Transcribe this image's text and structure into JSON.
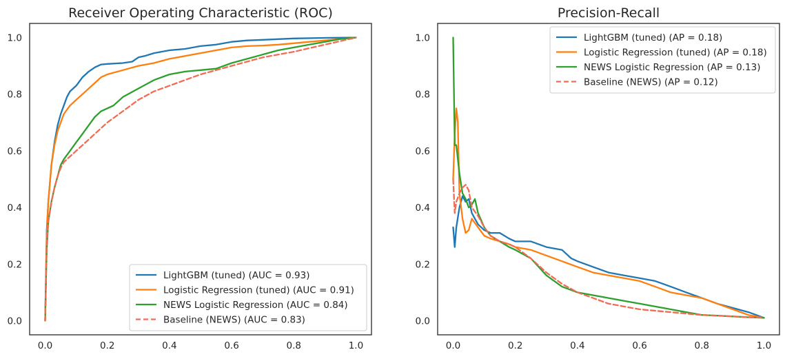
{
  "chart_data": [
    {
      "type": "line",
      "title": "Receiver Operating Characteristic (ROC)",
      "xlabel": "",
      "ylabel": "",
      "xlim": [
        -0.05,
        1.05
      ],
      "ylim": [
        -0.05,
        1.05
      ],
      "xticks": [
        "0.0",
        "0.2",
        "0.4",
        "0.6",
        "0.8",
        "1.0"
      ],
      "yticks": [
        "0.0",
        "0.2",
        "0.4",
        "0.6",
        "0.8",
        "1.0"
      ],
      "grid": false,
      "legend_position": "lower-right",
      "series": [
        {
          "name": "LightGBM (tuned) (AUC = 0.93)",
          "color": "#1f77b4",
          "dash": false,
          "x": [
            0,
            0.005,
            0.01,
            0.02,
            0.03,
            0.04,
            0.05,
            0.06,
            0.07,
            0.08,
            0.1,
            0.12,
            0.14,
            0.16,
            0.18,
            0.2,
            0.25,
            0.28,
            0.3,
            0.32,
            0.35,
            0.4,
            0.45,
            0.5,
            0.55,
            0.6,
            0.65,
            0.7,
            0.8,
            0.9,
            1.0
          ],
          "y": [
            0,
            0.32,
            0.42,
            0.55,
            0.63,
            0.69,
            0.73,
            0.76,
            0.79,
            0.81,
            0.83,
            0.86,
            0.88,
            0.895,
            0.905,
            0.907,
            0.91,
            0.915,
            0.93,
            0.935,
            0.945,
            0.955,
            0.96,
            0.97,
            0.975,
            0.985,
            0.99,
            0.992,
            0.997,
            0.999,
            1.0
          ]
        },
        {
          "name": "Logistic Regression (tuned) (AUC = 0.91)",
          "color": "#ff7f0e",
          "dash": false,
          "x": [
            0,
            0.005,
            0.01,
            0.02,
            0.03,
            0.04,
            0.05,
            0.06,
            0.08,
            0.1,
            0.12,
            0.15,
            0.18,
            0.2,
            0.25,
            0.3,
            0.35,
            0.4,
            0.45,
            0.5,
            0.55,
            0.6,
            0.65,
            0.7,
            0.75,
            0.8,
            0.85,
            0.9,
            0.95,
            1.0
          ],
          "y": [
            0,
            0.3,
            0.42,
            0.55,
            0.62,
            0.67,
            0.7,
            0.73,
            0.76,
            0.78,
            0.8,
            0.83,
            0.86,
            0.87,
            0.885,
            0.9,
            0.91,
            0.925,
            0.935,
            0.945,
            0.955,
            0.965,
            0.97,
            0.972,
            0.975,
            0.98,
            0.985,
            0.99,
            0.995,
            1.0
          ]
        },
        {
          "name": "NEWS Logistic Regression (AUC = 0.84)",
          "color": "#2ca02c",
          "dash": false,
          "x": [
            0,
            0.005,
            0.01,
            0.02,
            0.03,
            0.04,
            0.05,
            0.06,
            0.08,
            0.1,
            0.12,
            0.14,
            0.16,
            0.18,
            0.2,
            0.22,
            0.25,
            0.3,
            0.35,
            0.4,
            0.45,
            0.5,
            0.55,
            0.6,
            0.65,
            0.7,
            0.75,
            0.8,
            0.85,
            0.9,
            0.95,
            1.0
          ],
          "y": [
            0,
            0.25,
            0.35,
            0.42,
            0.47,
            0.51,
            0.55,
            0.57,
            0.6,
            0.63,
            0.66,
            0.69,
            0.72,
            0.74,
            0.75,
            0.76,
            0.79,
            0.82,
            0.85,
            0.87,
            0.88,
            0.885,
            0.89,
            0.91,
            0.925,
            0.94,
            0.955,
            0.965,
            0.975,
            0.985,
            0.995,
            1.0
          ]
        },
        {
          "name": "Baseline (NEWS) (AUC = 0.83)",
          "color": "#f26b52",
          "dash": true,
          "x": [
            0,
            0.005,
            0.01,
            0.02,
            0.03,
            0.04,
            0.05,
            0.06,
            0.08,
            0.1,
            0.12,
            0.15,
            0.2,
            0.25,
            0.3,
            0.35,
            0.4,
            0.5,
            0.6,
            0.7,
            0.8,
            0.9,
            1.0
          ],
          "y": [
            0,
            0.27,
            0.35,
            0.42,
            0.47,
            0.51,
            0.54,
            0.56,
            0.58,
            0.6,
            0.62,
            0.65,
            0.7,
            0.74,
            0.78,
            0.81,
            0.83,
            0.87,
            0.9,
            0.93,
            0.95,
            0.975,
            1.0
          ]
        }
      ]
    },
    {
      "type": "line",
      "title": "Precision-Recall",
      "xlabel": "",
      "ylabel": "",
      "xlim": [
        -0.05,
        1.05
      ],
      "ylim": [
        -0.05,
        1.05
      ],
      "xticks": [
        "0.0",
        "0.2",
        "0.4",
        "0.6",
        "0.8",
        "1.0"
      ],
      "yticks": [
        "0.0",
        "0.2",
        "0.4",
        "0.6",
        "0.8",
        "1.0"
      ],
      "grid": false,
      "legend_position": "upper-right",
      "series": [
        {
          "name": "LightGBM (tuned) (AP = 0.18)",
          "color": "#1f77b4",
          "dash": false,
          "x": [
            0,
            0.005,
            0.01,
            0.02,
            0.03,
            0.04,
            0.05,
            0.06,
            0.08,
            0.1,
            0.12,
            0.15,
            0.18,
            0.2,
            0.25,
            0.3,
            0.35,
            0.38,
            0.4,
            0.45,
            0.5,
            0.55,
            0.6,
            0.65,
            0.7,
            0.75,
            0.8,
            0.85,
            0.9,
            0.95,
            1.0
          ],
          "y": [
            0.33,
            0.26,
            0.33,
            0.4,
            0.44,
            0.42,
            0.43,
            0.38,
            0.34,
            0.32,
            0.31,
            0.31,
            0.29,
            0.28,
            0.28,
            0.26,
            0.25,
            0.22,
            0.21,
            0.19,
            0.17,
            0.16,
            0.15,
            0.14,
            0.12,
            0.1,
            0.08,
            0.06,
            0.045,
            0.03,
            0.01
          ]
        },
        {
          "name": "Logistic Regression (tuned) (AP = 0.18)",
          "color": "#ff7f0e",
          "dash": false,
          "x": [
            0,
            0.005,
            0.01,
            0.015,
            0.02,
            0.03,
            0.04,
            0.05,
            0.06,
            0.08,
            0.1,
            0.12,
            0.15,
            0.18,
            0.2,
            0.25,
            0.3,
            0.35,
            0.4,
            0.45,
            0.5,
            0.55,
            0.6,
            0.65,
            0.7,
            0.75,
            0.8,
            0.85,
            0.9,
            0.95,
            1.0
          ],
          "y": [
            0.5,
            0.66,
            0.75,
            0.7,
            0.45,
            0.36,
            0.31,
            0.32,
            0.36,
            0.33,
            0.3,
            0.29,
            0.28,
            0.27,
            0.26,
            0.25,
            0.23,
            0.21,
            0.19,
            0.17,
            0.16,
            0.15,
            0.14,
            0.12,
            0.1,
            0.09,
            0.08,
            0.06,
            0.04,
            0.02,
            0.01
          ]
        },
        {
          "name": "NEWS Logistic Regression (AP = 0.13)",
          "color": "#2ca02c",
          "dash": false,
          "x": [
            0,
            0.005,
            0.01,
            0.02,
            0.03,
            0.04,
            0.05,
            0.06,
            0.07,
            0.08,
            0.1,
            0.12,
            0.15,
            0.18,
            0.2,
            0.25,
            0.3,
            0.35,
            0.4,
            0.45,
            0.5,
            0.55,
            0.6,
            0.65,
            0.7,
            0.75,
            0.8,
            0.85,
            0.9,
            0.95,
            1.0
          ],
          "y": [
            1.0,
            0.62,
            0.62,
            0.52,
            0.45,
            0.43,
            0.4,
            0.41,
            0.43,
            0.38,
            0.33,
            0.3,
            0.28,
            0.26,
            0.25,
            0.22,
            0.16,
            0.12,
            0.1,
            0.09,
            0.08,
            0.07,
            0.06,
            0.05,
            0.04,
            0.03,
            0.02,
            0.018,
            0.015,
            0.012,
            0.01
          ]
        },
        {
          "name": "Baseline (NEWS) (AP = 0.12)",
          "color": "#f26b52",
          "dash": true,
          "x": [
            0,
            0.005,
            0.01,
            0.02,
            0.03,
            0.04,
            0.05,
            0.06,
            0.08,
            0.1,
            0.12,
            0.15,
            0.18,
            0.2,
            0.25,
            0.3,
            0.35,
            0.4,
            0.45,
            0.5,
            0.6,
            0.7,
            0.8,
            0.9,
            1.0
          ],
          "y": [
            0.5,
            0.38,
            0.42,
            0.45,
            0.47,
            0.48,
            0.46,
            0.4,
            0.37,
            0.33,
            0.3,
            0.28,
            0.27,
            0.26,
            0.22,
            0.17,
            0.13,
            0.1,
            0.08,
            0.06,
            0.04,
            0.03,
            0.02,
            0.015,
            0.01
          ]
        }
      ]
    }
  ]
}
